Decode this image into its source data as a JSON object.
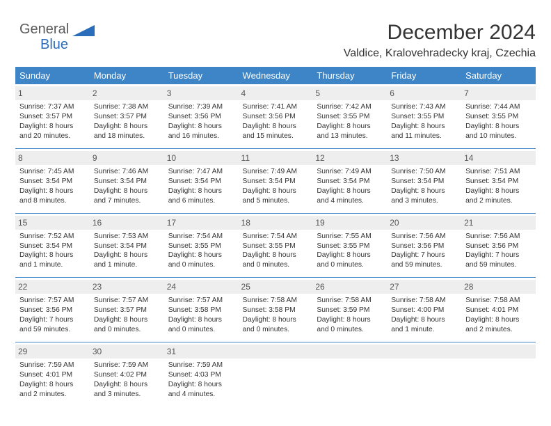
{
  "brand": {
    "word1": "General",
    "word2": "Blue",
    "color_text": "#5a5a5a",
    "color_accent": "#2a6db8"
  },
  "title": "December 2024",
  "location": "Valdice, Kralovehradecky kraj, Czechia",
  "colors": {
    "header_bg": "#3d85c6",
    "header_fg": "#ffffff",
    "daynum_bg": "#eeeeee",
    "row_divider": "#3d85c6",
    "page_bg": "#ffffff",
    "body_text": "#333333"
  },
  "type": "table",
  "columns": [
    "Sunday",
    "Monday",
    "Tuesday",
    "Wednesday",
    "Thursday",
    "Friday",
    "Saturday"
  ],
  "weeks": [
    [
      {
        "n": "1",
        "sr": "Sunrise: 7:37 AM",
        "ss": "Sunset: 3:57 PM",
        "d1": "Daylight: 8 hours",
        "d2": "and 20 minutes."
      },
      {
        "n": "2",
        "sr": "Sunrise: 7:38 AM",
        "ss": "Sunset: 3:57 PM",
        "d1": "Daylight: 8 hours",
        "d2": "and 18 minutes."
      },
      {
        "n": "3",
        "sr": "Sunrise: 7:39 AM",
        "ss": "Sunset: 3:56 PM",
        "d1": "Daylight: 8 hours",
        "d2": "and 16 minutes."
      },
      {
        "n": "4",
        "sr": "Sunrise: 7:41 AM",
        "ss": "Sunset: 3:56 PM",
        "d1": "Daylight: 8 hours",
        "d2": "and 15 minutes."
      },
      {
        "n": "5",
        "sr": "Sunrise: 7:42 AM",
        "ss": "Sunset: 3:55 PM",
        "d1": "Daylight: 8 hours",
        "d2": "and 13 minutes."
      },
      {
        "n": "6",
        "sr": "Sunrise: 7:43 AM",
        "ss": "Sunset: 3:55 PM",
        "d1": "Daylight: 8 hours",
        "d2": "and 11 minutes."
      },
      {
        "n": "7",
        "sr": "Sunrise: 7:44 AM",
        "ss": "Sunset: 3:55 PM",
        "d1": "Daylight: 8 hours",
        "d2": "and 10 minutes."
      }
    ],
    [
      {
        "n": "8",
        "sr": "Sunrise: 7:45 AM",
        "ss": "Sunset: 3:54 PM",
        "d1": "Daylight: 8 hours",
        "d2": "and 8 minutes."
      },
      {
        "n": "9",
        "sr": "Sunrise: 7:46 AM",
        "ss": "Sunset: 3:54 PM",
        "d1": "Daylight: 8 hours",
        "d2": "and 7 minutes."
      },
      {
        "n": "10",
        "sr": "Sunrise: 7:47 AM",
        "ss": "Sunset: 3:54 PM",
        "d1": "Daylight: 8 hours",
        "d2": "and 6 minutes."
      },
      {
        "n": "11",
        "sr": "Sunrise: 7:49 AM",
        "ss": "Sunset: 3:54 PM",
        "d1": "Daylight: 8 hours",
        "d2": "and 5 minutes."
      },
      {
        "n": "12",
        "sr": "Sunrise: 7:49 AM",
        "ss": "Sunset: 3:54 PM",
        "d1": "Daylight: 8 hours",
        "d2": "and 4 minutes."
      },
      {
        "n": "13",
        "sr": "Sunrise: 7:50 AM",
        "ss": "Sunset: 3:54 PM",
        "d1": "Daylight: 8 hours",
        "d2": "and 3 minutes."
      },
      {
        "n": "14",
        "sr": "Sunrise: 7:51 AM",
        "ss": "Sunset: 3:54 PM",
        "d1": "Daylight: 8 hours",
        "d2": "and 2 minutes."
      }
    ],
    [
      {
        "n": "15",
        "sr": "Sunrise: 7:52 AM",
        "ss": "Sunset: 3:54 PM",
        "d1": "Daylight: 8 hours",
        "d2": "and 1 minute."
      },
      {
        "n": "16",
        "sr": "Sunrise: 7:53 AM",
        "ss": "Sunset: 3:54 PM",
        "d1": "Daylight: 8 hours",
        "d2": "and 1 minute."
      },
      {
        "n": "17",
        "sr": "Sunrise: 7:54 AM",
        "ss": "Sunset: 3:55 PM",
        "d1": "Daylight: 8 hours",
        "d2": "and 0 minutes."
      },
      {
        "n": "18",
        "sr": "Sunrise: 7:54 AM",
        "ss": "Sunset: 3:55 PM",
        "d1": "Daylight: 8 hours",
        "d2": "and 0 minutes."
      },
      {
        "n": "19",
        "sr": "Sunrise: 7:55 AM",
        "ss": "Sunset: 3:55 PM",
        "d1": "Daylight: 8 hours",
        "d2": "and 0 minutes."
      },
      {
        "n": "20",
        "sr": "Sunrise: 7:56 AM",
        "ss": "Sunset: 3:56 PM",
        "d1": "Daylight: 7 hours",
        "d2": "and 59 minutes."
      },
      {
        "n": "21",
        "sr": "Sunrise: 7:56 AM",
        "ss": "Sunset: 3:56 PM",
        "d1": "Daylight: 7 hours",
        "d2": "and 59 minutes."
      }
    ],
    [
      {
        "n": "22",
        "sr": "Sunrise: 7:57 AM",
        "ss": "Sunset: 3:56 PM",
        "d1": "Daylight: 7 hours",
        "d2": "and 59 minutes."
      },
      {
        "n": "23",
        "sr": "Sunrise: 7:57 AM",
        "ss": "Sunset: 3:57 PM",
        "d1": "Daylight: 8 hours",
        "d2": "and 0 minutes."
      },
      {
        "n": "24",
        "sr": "Sunrise: 7:57 AM",
        "ss": "Sunset: 3:58 PM",
        "d1": "Daylight: 8 hours",
        "d2": "and 0 minutes."
      },
      {
        "n": "25",
        "sr": "Sunrise: 7:58 AM",
        "ss": "Sunset: 3:58 PM",
        "d1": "Daylight: 8 hours",
        "d2": "and 0 minutes."
      },
      {
        "n": "26",
        "sr": "Sunrise: 7:58 AM",
        "ss": "Sunset: 3:59 PM",
        "d1": "Daylight: 8 hours",
        "d2": "and 0 minutes."
      },
      {
        "n": "27",
        "sr": "Sunrise: 7:58 AM",
        "ss": "Sunset: 4:00 PM",
        "d1": "Daylight: 8 hours",
        "d2": "and 1 minute."
      },
      {
        "n": "28",
        "sr": "Sunrise: 7:58 AM",
        "ss": "Sunset: 4:01 PM",
        "d1": "Daylight: 8 hours",
        "d2": "and 2 minutes."
      }
    ],
    [
      {
        "n": "29",
        "sr": "Sunrise: 7:59 AM",
        "ss": "Sunset: 4:01 PM",
        "d1": "Daylight: 8 hours",
        "d2": "and 2 minutes."
      },
      {
        "n": "30",
        "sr": "Sunrise: 7:59 AM",
        "ss": "Sunset: 4:02 PM",
        "d1": "Daylight: 8 hours",
        "d2": "and 3 minutes."
      },
      {
        "n": "31",
        "sr": "Sunrise: 7:59 AM",
        "ss": "Sunset: 4:03 PM",
        "d1": "Daylight: 8 hours",
        "d2": "and 4 minutes."
      },
      null,
      null,
      null,
      null
    ]
  ]
}
